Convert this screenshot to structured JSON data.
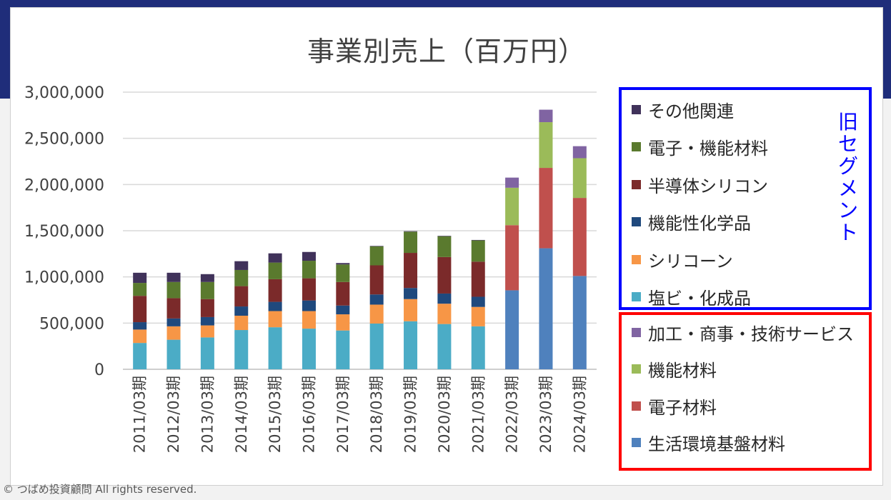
{
  "chart_data": {
    "type": "bar",
    "stacked": true,
    "title": "事業別売上（百万円）",
    "xlabel": "",
    "ylabel": "",
    "ylim": [
      0,
      3000000
    ],
    "yticks": [
      {
        "value": 0,
        "label": "0"
      },
      {
        "value": 500000,
        "label": "500,000"
      },
      {
        "value": 1000000,
        "label": "1,000,000"
      },
      {
        "value": 1500000,
        "label": "1,500,000"
      },
      {
        "value": 2000000,
        "label": "2,000,000"
      },
      {
        "value": 2500000,
        "label": "2,500,000"
      },
      {
        "value": 3000000,
        "label": "3,000,000"
      }
    ],
    "categories": [
      "2011/03期",
      "2012/03期",
      "2013/03期",
      "2014/03期",
      "2015/03期",
      "2016/03期",
      "2017/03期",
      "2018/03期",
      "2019/03期",
      "2020/03期",
      "2021/03期",
      "2022/03期",
      "2023/03期",
      "2024/03期"
    ],
    "series": [
      {
        "name": "塩ビ・化成品",
        "color": "#4bacc6",
        "values": [
          285000,
          320000,
          345000,
          425000,
          455000,
          440000,
          420000,
          495000,
          520000,
          490000,
          465000,
          0,
          0,
          0
        ]
      },
      {
        "name": "シリコーン",
        "color": "#f79646",
        "values": [
          145000,
          145000,
          130000,
          155000,
          175000,
          190000,
          175000,
          205000,
          240000,
          220000,
          210000,
          0,
          0,
          0
        ]
      },
      {
        "name": "機能性化学品",
        "color": "#1f497d",
        "values": [
          80000,
          85000,
          90000,
          100000,
          100000,
          115000,
          95000,
          110000,
          120000,
          110000,
          110000,
          0,
          0,
          0
        ]
      },
      {
        "name": "半導体シリコン",
        "color": "#7b2a2a",
        "values": [
          285000,
          220000,
          195000,
          220000,
          245000,
          240000,
          255000,
          315000,
          380000,
          395000,
          380000,
          0,
          0,
          0
        ]
      },
      {
        "name": "電子・機能材料",
        "color": "#5a7a2e",
        "values": [
          140000,
          175000,
          185000,
          175000,
          180000,
          190000,
          190000,
          205000,
          230000,
          225000,
          230000,
          0,
          0,
          0
        ]
      },
      {
        "name": "その他関連",
        "color": "#40325a",
        "values": [
          110000,
          100000,
          85000,
          95000,
          100000,
          95000,
          15000,
          5000,
          5000,
          5000,
          5000,
          0,
          0,
          0
        ]
      },
      {
        "name": "生活環境基盤材料",
        "color": "#4f81bd",
        "values": [
          0,
          0,
          0,
          0,
          0,
          0,
          0,
          0,
          0,
          0,
          0,
          855000,
          1310000,
          1010000
        ]
      },
      {
        "name": "電子材料",
        "color": "#c0504d",
        "values": [
          0,
          0,
          0,
          0,
          0,
          0,
          0,
          0,
          0,
          0,
          0,
          705000,
          870000,
          845000
        ]
      },
      {
        "name": "機能材料",
        "color": "#9bbb59",
        "values": [
          0,
          0,
          0,
          0,
          0,
          0,
          0,
          0,
          0,
          0,
          0,
          405000,
          495000,
          430000
        ]
      },
      {
        "name": "加工・商事・技術サービス",
        "color": "#8064a2",
        "values": [
          0,
          0,
          0,
          0,
          0,
          0,
          0,
          0,
          0,
          0,
          0,
          110000,
          135000,
          130000
        ]
      }
    ]
  },
  "legend": {
    "old_segment": {
      "label": "旧セグメント",
      "border_color": "#0000ff",
      "items": [
        {
          "label": "その他関連",
          "color": "#40325a"
        },
        {
          "label": "電子・機能材料",
          "color": "#5a7a2e"
        },
        {
          "label": "半導体シリコン",
          "color": "#7b2a2a"
        },
        {
          "label": "機能性化学品",
          "color": "#1f497d"
        },
        {
          "label": "シリコーン",
          "color": "#f79646"
        },
        {
          "label": "塩ビ・化成品",
          "color": "#4bacc6"
        }
      ]
    },
    "new_segment": {
      "border_color": "#ff0000",
      "items": [
        {
          "label": "加工・商事・技術サービス",
          "color": "#8064a2"
        },
        {
          "label": "機能材料",
          "color": "#9bbb59"
        },
        {
          "label": "電子材料",
          "color": "#c0504d"
        },
        {
          "label": "生活環境基盤材料",
          "color": "#4f81bd"
        }
      ]
    }
  },
  "footer": {
    "copyright": "© つばめ投資顧問 All rights reserved."
  }
}
